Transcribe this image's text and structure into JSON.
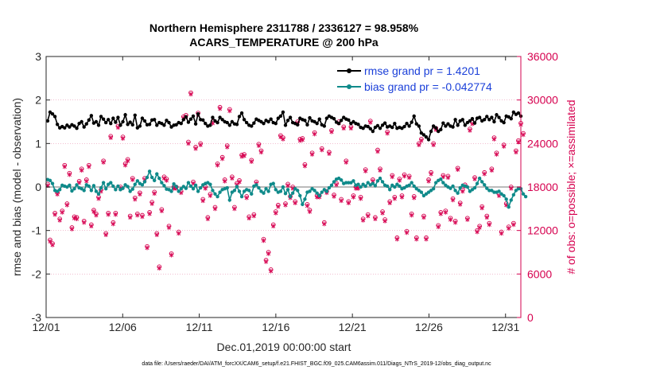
{
  "chart_data": {
    "type": "line",
    "title_line1": "Northern Hemisphere 2311788 / 2336127 = 98.958%",
    "title_line2": "ACARS_TEMPERATURE @ 200 hPa",
    "xlabel": "Dec.01,2019 00:00:00 start",
    "ylabel_left": "rmse and bias (model - observation)",
    "ylabel_right": "# of obs: o=possible; ×=assimilated",
    "footer": "data file: /Users/raeder/DAI/ATM_forcXX/CAM6_setup/f.e21.FHIST_BGC.f09_025.CAM6assim.011/Diags_NTrS_2019-12/obs_diag_output.nc",
    "xlim": [
      0,
      31
    ],
    "ylim_left": [
      -3,
      3
    ],
    "ylim_right": [
      0,
      36000
    ],
    "x_ticks": [
      0,
      5,
      10,
      15,
      20,
      25,
      30
    ],
    "x_tick_labels": [
      "12/01",
      "12/06",
      "12/11",
      "12/16",
      "12/21",
      "12/26",
      "12/31"
    ],
    "y_left_ticks": [
      "-3",
      "-2",
      "-1",
      "0",
      "1",
      "2",
      "3"
    ],
    "y_right_ticks": [
      "0",
      "6000",
      "12000",
      "18000",
      "24000",
      "30000",
      "36000"
    ],
    "legend": {
      "location": "top-right",
      "entries": [
        "rmse grand pr = 1.4201",
        "bias grand pr = -0.042774"
      ]
    },
    "colors": {
      "rmse": "#000000",
      "bias": "#0f8a8a",
      "obs": "#d6004f",
      "legend_text": "#1a3fd9",
      "zero_line": "#bbbbbb"
    },
    "series": [
      {
        "name": "rmse",
        "values": [
          1.52,
          1.72,
          1.68,
          1.62,
          1.44,
          1.36,
          1.39,
          1.36,
          1.42,
          1.38,
          1.43,
          1.4,
          1.35,
          1.46,
          1.5,
          1.38,
          1.45,
          1.54,
          1.64,
          1.47,
          1.5,
          1.42,
          1.62,
          1.56,
          1.48,
          1.55,
          1.46,
          1.58,
          1.49,
          1.6,
          1.42,
          1.5,
          1.66,
          1.44,
          1.49,
          1.43,
          1.65,
          1.36,
          1.4,
          1.58,
          1.52,
          1.43,
          1.44,
          1.54,
          1.55,
          1.42,
          1.48,
          1.46,
          1.42,
          1.53,
          1.48,
          1.38,
          1.42,
          1.43,
          1.48,
          1.46,
          1.55,
          1.61,
          1.49,
          1.56,
          1.63,
          1.45,
          1.68,
          1.55,
          1.54,
          1.46,
          1.4,
          1.42,
          1.6,
          1.52,
          1.48,
          1.6,
          1.55,
          1.5,
          1.48,
          1.42,
          1.5,
          1.45,
          1.44,
          1.62,
          1.7,
          1.55,
          1.48,
          1.42,
          1.4,
          1.47,
          1.56,
          1.53,
          1.5,
          1.46,
          1.53,
          1.5,
          1.56,
          1.48,
          1.46,
          1.58,
          1.63,
          1.72,
          1.42,
          1.53,
          1.6,
          1.48,
          1.46,
          1.43,
          1.58,
          1.55,
          1.53,
          1.43,
          1.59,
          1.52,
          1.5,
          1.46,
          1.56,
          1.43,
          1.4,
          1.58,
          1.63,
          1.6,
          1.57,
          1.49,
          1.46,
          1.53,
          1.6,
          1.56,
          1.54,
          1.46,
          1.5,
          1.46,
          1.44,
          1.37,
          1.35,
          1.4,
          1.39,
          1.34,
          1.28,
          1.37,
          1.41,
          1.35,
          1.42,
          1.47,
          1.38,
          1.4,
          1.37,
          1.46,
          1.35,
          1.37,
          1.35,
          1.39,
          1.46,
          1.4,
          1.49,
          1.63,
          1.45,
          1.4,
          1.24,
          1.2,
          1.15,
          1.09,
          1.28,
          1.4,
          1.36,
          1.28,
          1.32,
          1.47,
          1.4,
          1.45,
          1.4,
          1.38,
          1.55,
          1.42,
          1.52,
          1.55,
          1.42,
          1.48,
          1.52,
          1.57,
          1.47,
          1.58,
          1.6,
          1.52,
          1.55,
          1.62,
          1.55,
          1.6,
          1.5,
          1.66,
          1.6,
          1.52,
          1.48,
          1.63,
          1.61,
          1.57,
          1.72,
          1.67,
          1.7,
          1.63
        ]
      },
      {
        "name": "bias",
        "values": [
          0.17,
          0.15,
          0.08,
          -0.08,
          -0.1,
          -0.06,
          0.04,
          0.02,
          0.0,
          0.04,
          -0.09,
          -0.04,
          0.05,
          -0.02,
          -0.04,
          -0.08,
          0.05,
          0.02,
          -0.08,
          0.03,
          -0.1,
          -0.16,
          -0.02,
          0.1,
          -0.04,
          0.06,
          0.1,
          0.02,
          -0.06,
          0.02,
          -0.06,
          -0.03,
          0.05,
          0.01,
          -0.1,
          -0.05,
          0.06,
          0.14,
          0.08,
          0.05,
          0.12,
          0.22,
          0.36,
          0.22,
          0.15,
          0.3,
          0.2,
          0.1,
          0.03,
          -0.05,
          -0.06,
          -0.1,
          0.07,
          0.01,
          -0.1,
          -0.04,
          0.01,
          -0.03,
          0.1,
          0.02,
          -0.04,
          0.04,
          -0.1,
          -0.02,
          0.05,
          0.08,
          0.1,
          0.06,
          -0.08,
          -0.16,
          -0.22,
          -0.12,
          -0.06,
          -0.04,
          -0.02,
          -0.3,
          -0.12,
          -0.08,
          0.01,
          -0.1,
          -0.22,
          -0.1,
          -0.06,
          -0.08,
          -0.16,
          0.02,
          0.05,
          -0.02,
          -0.1,
          -0.14,
          -0.04,
          -0.1,
          0.06,
          0.08,
          -0.06,
          -0.12,
          -0.1,
          0.0,
          -0.15,
          -0.06,
          -0.22,
          -0.14,
          -0.04,
          -0.08,
          -0.2,
          -0.4,
          -0.28,
          -0.12,
          -0.1,
          -0.04,
          -0.08,
          -0.14,
          -0.2,
          -0.12,
          -0.06,
          -0.1,
          -0.02,
          0.04,
          0.12,
          0.18,
          0.2,
          0.16,
          0.08,
          0.1,
          0.1,
          0.1,
          0.14,
          0.04,
          0.06,
          0.0,
          0.06,
          0.02,
          0.1,
          0.05,
          0.08,
          0.03,
          0.14,
          0.2,
          0.12,
          0.04,
          0.02,
          -0.06,
          0.04,
          0.0,
          0.06,
          0.02,
          -0.04,
          -0.02,
          0.02,
          0.04,
          0.1,
          0.02,
          -0.04,
          -0.08,
          -0.12,
          -0.2,
          -0.16,
          -0.12,
          -0.08,
          -0.04,
          0.1,
          0.15,
          0.18,
          0.1,
          0.04,
          0.0,
          -0.03,
          0.02,
          -0.08,
          -0.14,
          -0.02,
          0.04,
          0.02,
          0.0,
          -0.1,
          -0.06,
          -0.02,
          0.08,
          0.2,
          0.12,
          0.05,
          -0.03,
          -0.08,
          -0.08,
          -0.12,
          -0.12,
          -0.1,
          -0.16,
          -0.2,
          -0.28,
          -0.46,
          -0.3,
          -0.18,
          -0.08,
          -0.04,
          -0.04,
          -0.16,
          -0.22
        ]
      },
      {
        "name": "obs_possible",
        "values": [
          18400,
          10700,
          10200,
          14400,
          17200,
          13600,
          14700,
          21000,
          15700,
          19900,
          12400,
          13900,
          13800,
          18800,
          20500,
          13300,
          19000,
          21000,
          12800,
          14800,
          14300,
          16600,
          17600,
          21600,
          11600,
          14400,
          25000,
          13100,
          14400,
          26400,
          18000,
          24900,
          21200,
          21800,
          14000,
          19200,
          16500,
          14300,
          17200,
          14100,
          19200,
          9800,
          14500,
          15900,
          17300,
          11600,
          7000,
          14900,
          19400,
          19100,
          12600,
          8800,
          18000,
          18000,
          11800,
          17400,
          27700,
          27900,
          24200,
          31000,
          18700,
          23500,
          28200,
          24000,
          16300,
          18000,
          13800,
          17000,
          27000,
          15200,
          21200,
          29000,
          22100,
          19000,
          23700,
          28700,
          19400,
          15200,
          18500,
          18900,
          22400,
          22500,
          16700,
          13900,
          21700,
          14200,
          18700,
          23900,
          23000,
          10800,
          7900,
          9000,
          6600,
          12800,
          14600,
          15500,
          25100,
          24800,
          15700,
          18400,
          16700,
          18000,
          16000,
          27000,
          24600,
          24700,
          21100,
          15600,
          14800,
          22700,
          25500,
          16800,
          16800,
          23300,
          13100,
          17400,
          22800,
          25800,
          16900,
          18500,
          27000,
          16300,
          26300,
          21600,
          16000,
          26300,
          16800,
          18000,
          18000,
          16600,
          13600,
          20400,
          14200,
          27100,
          19000,
          13800,
          23100,
          20500,
          14600,
          13500,
          25600,
          16000,
          19600,
          16600,
          11000,
          19100,
          16800,
          19700,
          11900,
          19500,
          14300,
          16700,
          11000,
          24000,
          24600,
          14000,
          11000,
          19000,
          20000,
          24000,
          26100,
          12700,
          14500,
          19600,
          14700,
          19500,
          13700,
          16400,
          13300,
          20600,
          15800,
          17600,
          18300,
          13700,
          26000,
          26900,
          19300,
          12000,
          12600,
          15300,
          20000,
          14000,
          13000,
          20500,
          24800,
          22700,
          17000,
          11800,
          23800,
          15700,
          12500,
          18000,
          13000,
          23000,
          24400,
          26800,
          25400
        ]
      },
      {
        "name": "obs_assimilated",
        "values": [
          18200,
          10500,
          10000,
          14200,
          17000,
          13400,
          14500,
          20800,
          15500,
          19700,
          12200,
          13700,
          13600,
          18600,
          20300,
          13100,
          18800,
          20800,
          12600,
          14600,
          14100,
          16400,
          17400,
          21400,
          11400,
          14200,
          24800,
          12900,
          14200,
          26200,
          17800,
          24700,
          21000,
          21600,
          13800,
          19000,
          16300,
          14100,
          17000,
          13900,
          19000,
          9600,
          14300,
          15700,
          17100,
          11400,
          6800,
          14700,
          19200,
          18900,
          12400,
          8600,
          17800,
          17800,
          11600,
          17200,
          27500,
          27700,
          24000,
          30800,
          18500,
          23300,
          28000,
          23800,
          16100,
          17800,
          13600,
          16800,
          26800,
          15000,
          21000,
          28800,
          21900,
          18800,
          23500,
          28500,
          19200,
          15000,
          18300,
          18700,
          22200,
          22300,
          16500,
          13700,
          21500,
          14000,
          18500,
          23700,
          22800,
          10600,
          7700,
          8800,
          6400,
          12600,
          14400,
          15300,
          24900,
          24600,
          15500,
          18200,
          16500,
          17800,
          15800,
          26800,
          24400,
          24500,
          20900,
          15400,
          14600,
          22500,
          25300,
          16600,
          16600,
          23100,
          12900,
          17200,
          22600,
          25600,
          16700,
          18300,
          26800,
          16100,
          26100,
          21400,
          15800,
          26100,
          16600,
          17800,
          17800,
          16400,
          13400,
          20200,
          14000,
          26900,
          18800,
          13600,
          22900,
          20300,
          14400,
          13300,
          25400,
          15800,
          19400,
          16400,
          10800,
          18900,
          16600,
          19500,
          11700,
          19300,
          14100,
          16500,
          10800,
          23800,
          24400,
          13800,
          10800,
          18800,
          19800,
          23800,
          25900,
          12500,
          14300,
          19400,
          14500,
          19300,
          13500,
          16200,
          13100,
          20400,
          15600,
          17400,
          18100,
          13500,
          25800,
          26700,
          19100,
          11800,
          12400,
          15100,
          19800,
          13800,
          12800,
          20300,
          24600,
          22500,
          16800,
          11600,
          23600,
          15500,
          12300,
          17800,
          12800,
          22800,
          24200,
          26600,
          25200
        ]
      }
    ]
  }
}
